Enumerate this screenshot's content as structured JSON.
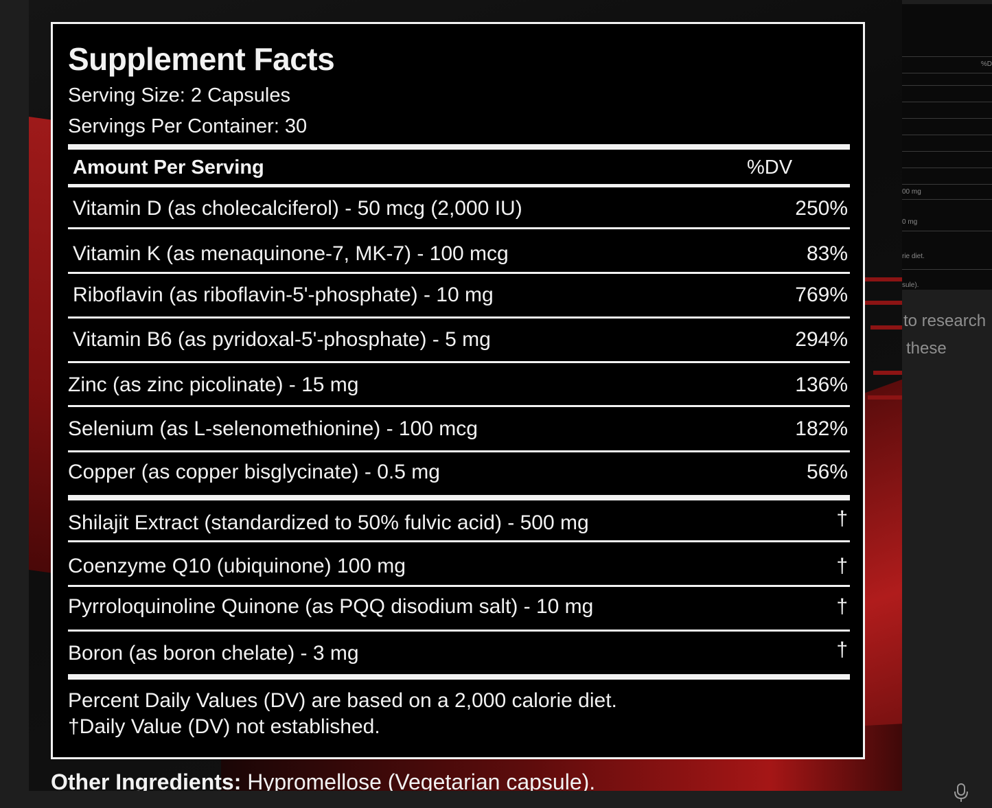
{
  "facts": {
    "title": "Supplement Facts",
    "serving_size": "Serving Size: 2 Capsules",
    "servings_per_container": "Servings Per Container: 30",
    "amount_header": "Amount Per Serving",
    "dv_header": "%DV",
    "rows": [
      {
        "name": "Vitamin D (as cholecalciferol) - 50 mcg (2,000 IU)",
        "dv": "250%"
      },
      {
        "name": "Vitamin K (as menaquinone-7, MK-7) - 100 mcg",
        "dv": "83%"
      },
      {
        "name": "Riboflavin (as riboflavin-5'-phosphate) - 10 mg",
        "dv": "769%"
      },
      {
        "name": "Vitamin B6 (as pyridoxal-5'-phosphate) - 5 mg",
        "dv": "294%"
      },
      {
        "name": "Zinc (as zinc picolinate) - 15 mg",
        "dv": "136%"
      },
      {
        "name": "Selenium (as L-selenomethionine) - 100 mcg",
        "dv": "182%"
      },
      {
        "name": "Copper (as copper bisglycinate) - 0.5 mg",
        "dv": "56%"
      },
      {
        "name": "Shilajit Extract (standardized to 50% fulvic acid) - 500 mg",
        "dv": "†"
      },
      {
        "name": "Coenzyme Q10 (ubiquinone) 100 mg",
        "dv": "†"
      },
      {
        "name": "Pyrroloquinoline Quinone (as PQQ disodium salt) - 10 mg",
        "dv": "†"
      },
      {
        "name": "Boron (as boron chelate) - 3 mg",
        "dv": "†"
      }
    ],
    "footnote_1": "Percent Daily Values (DV) are based on a 2,000 calorie diet.",
    "footnote_2": "†Daily Value (DV) not established."
  },
  "other_ingredients": {
    "label": "Other Ingredients:",
    "value": " Hypromellose (Vegetarian capsule)."
  },
  "side_panel": {
    "col_hint": "%D",
    "row_texts": [
      "00 mg",
      "0 mg",
      "rie diet.",
      "sule)."
    ],
    "partial_text_1": "to research",
    "partial_text_2": "these"
  },
  "icons": {
    "microphone": "mic-icon"
  },
  "colors": {
    "panel_bg": "#000000",
    "panel_text": "#f2f2f2",
    "accent_red": "#a51616",
    "page_bg": "#1e1e1e"
  }
}
